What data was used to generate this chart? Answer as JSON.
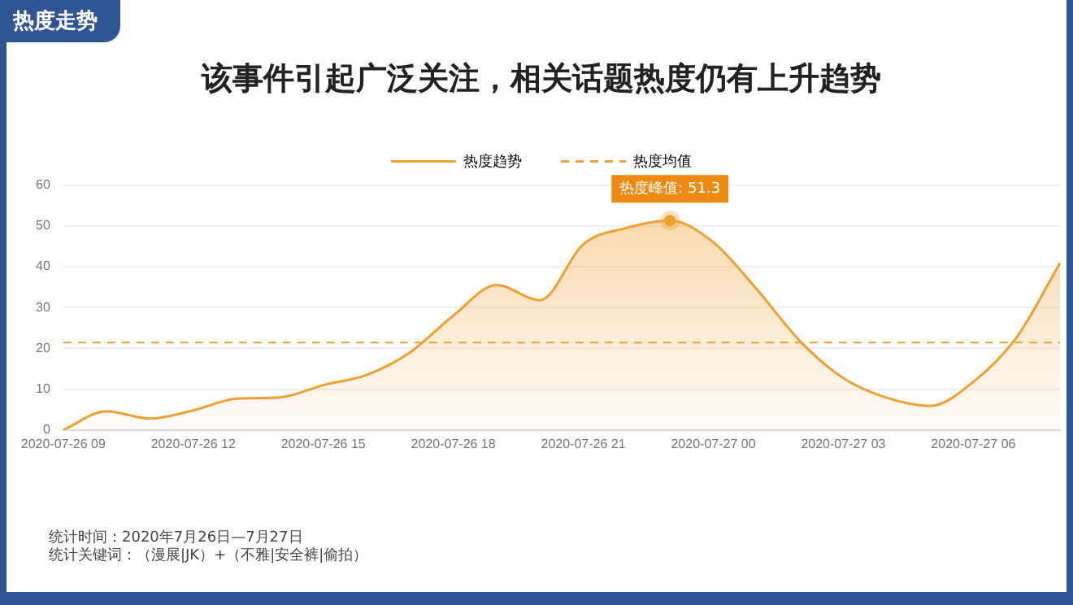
{
  "chart_data": {
    "type": "area",
    "title": "该事件引起广泛关注，相关话题热度仍有上升趋势",
    "categories": [
      "2020-07-26 09",
      null,
      null,
      "2020-07-26 12",
      null,
      null,
      "2020-07-26 15",
      null,
      null,
      "2020-07-26 18",
      null,
      null,
      "2020-07-26 21",
      null,
      null,
      "2020-07-27 00",
      null,
      null,
      "2020-07-27 03",
      null,
      null,
      "2020-07-27 06",
      null,
      null
    ],
    "series": [
      {
        "name": "热度趋势",
        "color": "#f0a030",
        "values": [
          0,
          4.6,
          2.8,
          4.8,
          7.7,
          8,
          11,
          13.5,
          19,
          28,
          35.5,
          31.8,
          45.5,
          49.5,
          51.3,
          46,
          34.5,
          21.8,
          12.7,
          7.9,
          5.9,
          11.8,
          22.7,
          40.9
        ]
      }
    ],
    "ylim": [
      0,
      60
    ],
    "yticks": [
      0,
      10,
      20,
      30,
      40,
      50,
      60
    ],
    "grid": "y",
    "legend": "top",
    "marker": "none",
    "line_style": "solid",
    "ref_lines": [
      {
        "axis": "y",
        "value": 21.4,
        "label": "热度均值",
        "color": "#f0a030",
        "line_style": "dashed"
      }
    ],
    "annotations": [
      "热度走势",
      {
        "text": "热度峰值: 51.3",
        "y": 51.3
      },
      "统计时间：2020年7月26日—7月27日",
      "统计关键词：（漫展|JK）+（不雅|安全裤|偷拍）"
    ]
  }
}
